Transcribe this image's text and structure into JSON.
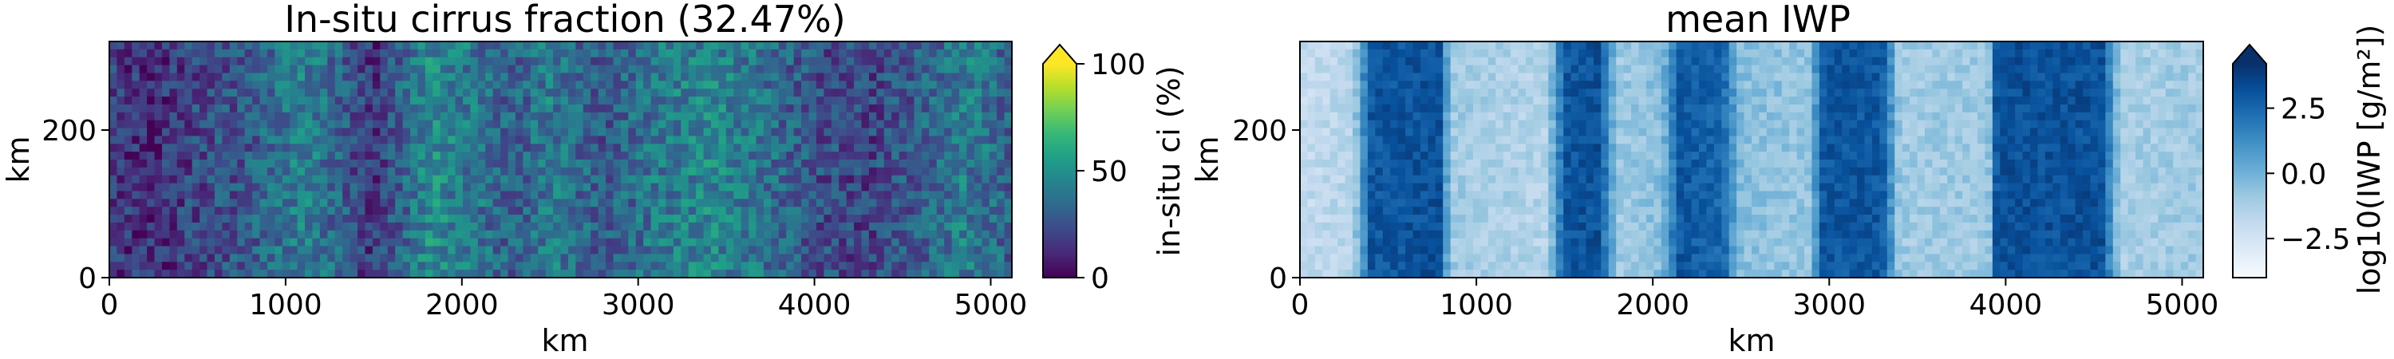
{
  "chart_data": [
    {
      "type": "heatmap",
      "title": "In-situ cirrus fraction (32.47%)",
      "xlabel": "km",
      "ylabel": "km",
      "xlim": [
        0,
        5120
      ],
      "ylim": [
        0,
        320
      ],
      "xticks": [
        0,
        1000,
        2000,
        3000,
        4000,
        5000
      ],
      "yticks": [
        0,
        200
      ],
      "colormap": "viridis",
      "colorbar": {
        "label": "in-situ ci (%)",
        "range": [
          0,
          100
        ],
        "ticks": [
          0,
          50,
          100
        ],
        "extend": "max",
        "colors": [
          "#440154",
          "#482878",
          "#3e4989",
          "#31688e",
          "#26828e",
          "#1f9e89",
          "#35b779",
          "#6ece58",
          "#b5de2b",
          "#fde725"
        ]
      },
      "column_profile_x": [
        0,
        250,
        500,
        800,
        1100,
        1300,
        1500,
        1800,
        2100,
        2300,
        2500,
        2800,
        3100,
        3400,
        3700,
        4000,
        4300,
        4600,
        4850,
        5120
      ],
      "column_profile_values": [
        18,
        12,
        22,
        28,
        45,
        32,
        15,
        48,
        38,
        30,
        42,
        28,
        40,
        45,
        38,
        25,
        20,
        30,
        42,
        30
      ]
    },
    {
      "type": "heatmap",
      "title": "mean IWP",
      "xlabel": "km",
      "ylabel": "km",
      "xlim": [
        0,
        5120
      ],
      "ylim": [
        0,
        320
      ],
      "xticks": [
        0,
        1000,
        2000,
        3000,
        4000,
        5000
      ],
      "yticks": [
        0,
        200
      ],
      "colormap": "Blues",
      "colorbar": {
        "label": "log10(IWP [g/m²])",
        "range": [
          -4,
          4.2
        ],
        "ticks": [
          -2.5,
          0.0,
          2.5
        ],
        "tick_labels": [
          "−2.5",
          "0.0",
          "2.5"
        ],
        "extend": "max",
        "colors": [
          "#f7fbff",
          "#deebf7",
          "#c6dbef",
          "#9ecae1",
          "#6baed6",
          "#4292c6",
          "#2171b5",
          "#08519c",
          "#08306b"
        ]
      },
      "column_profile_x": [
        0,
        300,
        400,
        800,
        850,
        1400,
        1500,
        1700,
        1800,
        2050,
        2150,
        2400,
        2500,
        2900,
        2950,
        3300,
        3400,
        3900,
        3950,
        4550,
        4650,
        5120
      ],
      "column_profile_values": [
        -2.0,
        -1.5,
        3.0,
        3.2,
        -1.0,
        -1.5,
        3.0,
        3.2,
        -1.0,
        -0.5,
        3.0,
        2.5,
        -0.5,
        -0.8,
        3.0,
        3.0,
        -1.0,
        -1.0,
        3.2,
        3.2,
        -1.2,
        -1.0
      ]
    }
  ]
}
